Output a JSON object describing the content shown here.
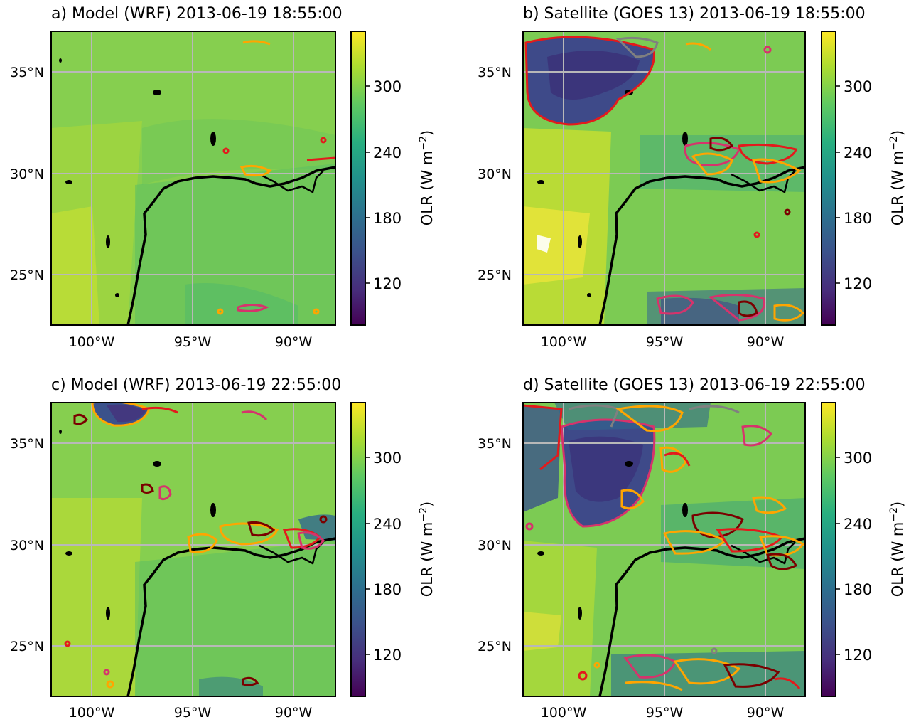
{
  "colors": {
    "viridis": [
      "#440154",
      "#482878",
      "#3e4989",
      "#31688e",
      "#26828e",
      "#1f9e89",
      "#35b779",
      "#6ece58",
      "#b5de2b",
      "#fde725"
    ],
    "coastline": "#000000",
    "gridline": "#b8b8b8",
    "contour_levels": [
      "#7a0000",
      "#e31a1c",
      "#d6336c",
      "#ffa500",
      "#808080"
    ]
  },
  "icons": {
    "coastline": "coastline-path",
    "storm_contour": "cloud-contour"
  },
  "colorbar": {
    "label": "OLR (W m$^{-2}$)",
    "label_display": "OLR (W m",
    "label_sup": "−2",
    "label_close": ")",
    "ticks": [
      "300",
      "240",
      "180",
      "120"
    ]
  },
  "panels": [
    {
      "title": "a)  Model (WRF) 2013-06-19 18:55:00",
      "lat_ticks": [
        "35°N",
        "30°N",
        "25°N"
      ],
      "lon_ticks": [
        "100°W",
        "95°W",
        "90°W"
      ],
      "extent": {
        "lon": [
          -102,
          -88
        ],
        "lat": [
          22.5,
          37
        ]
      },
      "field_style": "model_early"
    },
    {
      "title": "b)  Satellite (GOES 13) 2013-06-19 18:55:00",
      "lat_ticks": [
        "35°N",
        "30°N",
        "25°N"
      ],
      "lon_ticks": [
        "100°W",
        "95°W",
        "90°W"
      ],
      "extent": {
        "lon": [
          -102,
          -88
        ],
        "lat": [
          22.5,
          37
        ]
      },
      "field_style": "sat_early"
    },
    {
      "title": "c)  Model (WRF) 2013-06-19 22:55:00",
      "lat_ticks": [
        "35°N",
        "30°N",
        "25°N"
      ],
      "lon_ticks": [
        "100°W",
        "95°W",
        "90°W"
      ],
      "extent": {
        "lon": [
          -102,
          -88
        ],
        "lat": [
          22.5,
          37
        ]
      },
      "field_style": "model_late"
    },
    {
      "title": "d)  Satellite (GOES 13) 2013-06-19 22:55:00",
      "lat_ticks": [
        "35°N",
        "30°N",
        "25°N"
      ],
      "lon_ticks": [
        "100°W",
        "95°W",
        "90°W"
      ],
      "extent": {
        "lon": [
          -102,
          -88
        ],
        "lat": [
          22.5,
          37
        ]
      },
      "field_style": "sat_late"
    }
  ]
}
